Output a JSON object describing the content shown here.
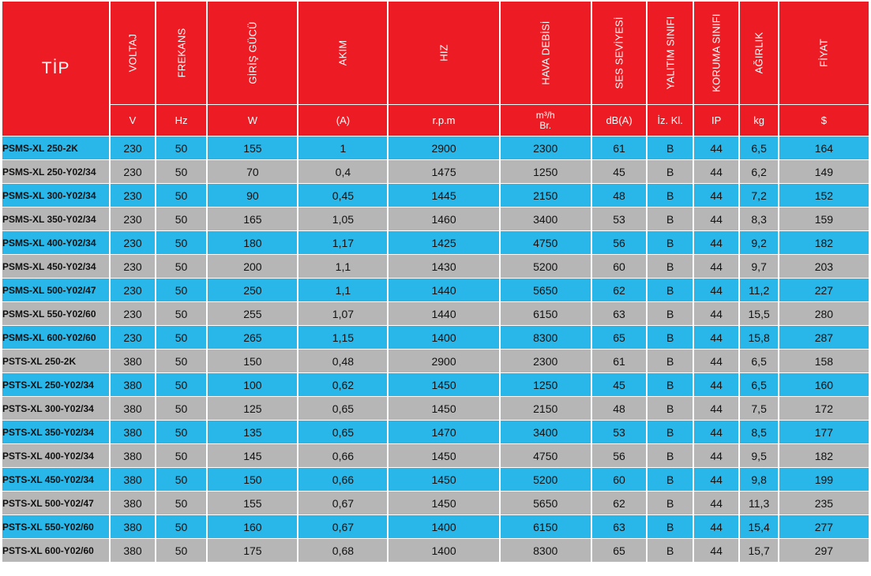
{
  "colors": {
    "header": "#ed1c24",
    "row_blue": "#29b6e8",
    "row_gray": "#b6b6b7"
  },
  "header": {
    "tip": "TİP",
    "columns": [
      "VOLTAJ",
      "FREKANS",
      "GİRİŞ GÜCÜ",
      "AKIM",
      "HIZ",
      "HAVA DEBİSİ",
      "SES SEVİYESİ",
      "YALITIM SINIFI",
      "KORUMA SINIFI",
      "AĞIRLIK",
      "FİYAT"
    ],
    "units": [
      "V",
      "Hz",
      "W",
      "(A)",
      "r.p.m",
      "m³/h Br.",
      "dB(A)",
      "İz. Kl.",
      "IP",
      "kg",
      "$"
    ]
  },
  "chart_data": {
    "type": "table",
    "columns": [
      "TİP",
      "VOLTAJ",
      "FREKANS",
      "GİRİŞ GÜCÜ",
      "AKIM",
      "HIZ",
      "HAVA DEBİSİ",
      "SES SEVİYESİ",
      "YALITIM SINIFI",
      "KORUMA SINIFI",
      "AĞIRLIK",
      "FİYAT"
    ],
    "units": [
      "",
      "V",
      "Hz",
      "W",
      "(A)",
      "r.p.m",
      "m³/h Br.",
      "dB(A)",
      "İz. Kl.",
      "IP",
      "kg",
      "$"
    ],
    "rows": [
      [
        "PSMS-XL 250-2K",
        "230",
        "50",
        "155",
        "1",
        "2900",
        "2300",
        "61",
        "B",
        "44",
        "6,5",
        "164"
      ],
      [
        "PSMS-XL 250-Y02/34",
        "230",
        "50",
        "70",
        "0,4",
        "1475",
        "1250",
        "45",
        "B",
        "44",
        "6,2",
        "149"
      ],
      [
        "PSMS-XL 300-Y02/34",
        "230",
        "50",
        "90",
        "0,45",
        "1445",
        "2150",
        "48",
        "B",
        "44",
        "7,2",
        "152"
      ],
      [
        "PSMS-XL 350-Y02/34",
        "230",
        "50",
        "165",
        "1,05",
        "1460",
        "3400",
        "53",
        "B",
        "44",
        "8,3",
        "159"
      ],
      [
        "PSMS-XL 400-Y02/34",
        "230",
        "50",
        "180",
        "1,17",
        "1425",
        "4750",
        "56",
        "B",
        "44",
        "9,2",
        "182"
      ],
      [
        "PSMS-XL 450-Y02/34",
        "230",
        "50",
        "200",
        "1,1",
        "1430",
        "5200",
        "60",
        "B",
        "44",
        "9,7",
        "203"
      ],
      [
        "PSMS-XL 500-Y02/47",
        "230",
        "50",
        "250",
        "1,1",
        "1440",
        "5650",
        "62",
        "B",
        "44",
        "11,2",
        "227"
      ],
      [
        "PSMS-XL 550-Y02/60",
        "230",
        "50",
        "255",
        "1,07",
        "1440",
        "6150",
        "63",
        "B",
        "44",
        "15,5",
        "280"
      ],
      [
        "PSMS-XL 600-Y02/60",
        "230",
        "50",
        "265",
        "1,15",
        "1400",
        "8300",
        "65",
        "B",
        "44",
        "15,8",
        "287"
      ],
      [
        "PSTS-XL 250-2K",
        "380",
        "50",
        "150",
        "0,48",
        "2900",
        "2300",
        "61",
        "B",
        "44",
        "6,5",
        "158"
      ],
      [
        "PSTS-XL 250-Y02/34",
        "380",
        "50",
        "100",
        "0,62",
        "1450",
        "1250",
        "45",
        "B",
        "44",
        "6,5",
        "160"
      ],
      [
        "PSTS-XL 300-Y02/34",
        "380",
        "50",
        "125",
        "0,65",
        "1450",
        "2150",
        "48",
        "B",
        "44",
        "7,5",
        "172"
      ],
      [
        "PSTS-XL 350-Y02/34",
        "380",
        "50",
        "135",
        "0,65",
        "1470",
        "3400",
        "53",
        "B",
        "44",
        "8,5",
        "177"
      ],
      [
        "PSTS-XL 400-Y02/34",
        "380",
        "50",
        "145",
        "0,66",
        "1450",
        "4750",
        "56",
        "B",
        "44",
        "9,5",
        "182"
      ],
      [
        "PSTS-XL 450-Y02/34",
        "380",
        "50",
        "150",
        "0,66",
        "1450",
        "5200",
        "60",
        "B",
        "44",
        "9,8",
        "199"
      ],
      [
        "PSTS-XL 500-Y02/47",
        "380",
        "50",
        "155",
        "0,67",
        "1450",
        "5650",
        "62",
        "B",
        "44",
        "11,3",
        "235"
      ],
      [
        "PSTS-XL 550-Y02/60",
        "380",
        "50",
        "160",
        "0,67",
        "1400",
        "6150",
        "63",
        "B",
        "44",
        "15,4",
        "277"
      ],
      [
        "PSTS-XL 600-Y02/60",
        "380",
        "50",
        "175",
        "0,68",
        "1400",
        "8300",
        "65",
        "B",
        "44",
        "15,7",
        "297"
      ]
    ]
  }
}
